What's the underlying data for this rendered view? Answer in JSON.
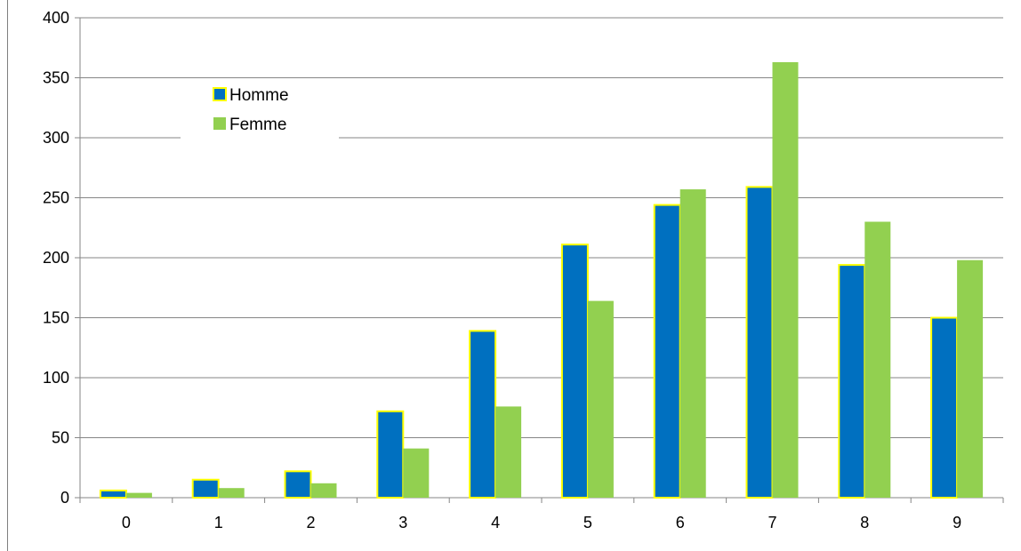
{
  "chart_data": {
    "type": "bar",
    "categories": [
      "0",
      "1",
      "2",
      "3",
      "4",
      "5",
      "6",
      "7",
      "8",
      "9"
    ],
    "series": [
      {
        "name": "Homme",
        "values": [
          6,
          15,
          22,
          72,
          139,
          211,
          244,
          259,
          194,
          150
        ],
        "color": "#0070C0",
        "border": "#FFFF00"
      },
      {
        "name": "Femme",
        "values": [
          4,
          8,
          12,
          41,
          76,
          164,
          257,
          363,
          230,
          198
        ],
        "color": "#92D050"
      }
    ],
    "y_ticks": [
      "0",
      "50",
      "100",
      "150",
      "200",
      "250",
      "300",
      "350",
      "400"
    ],
    "ylim": [
      0,
      400
    ],
    "grid": true,
    "legend_position": "top-left"
  }
}
